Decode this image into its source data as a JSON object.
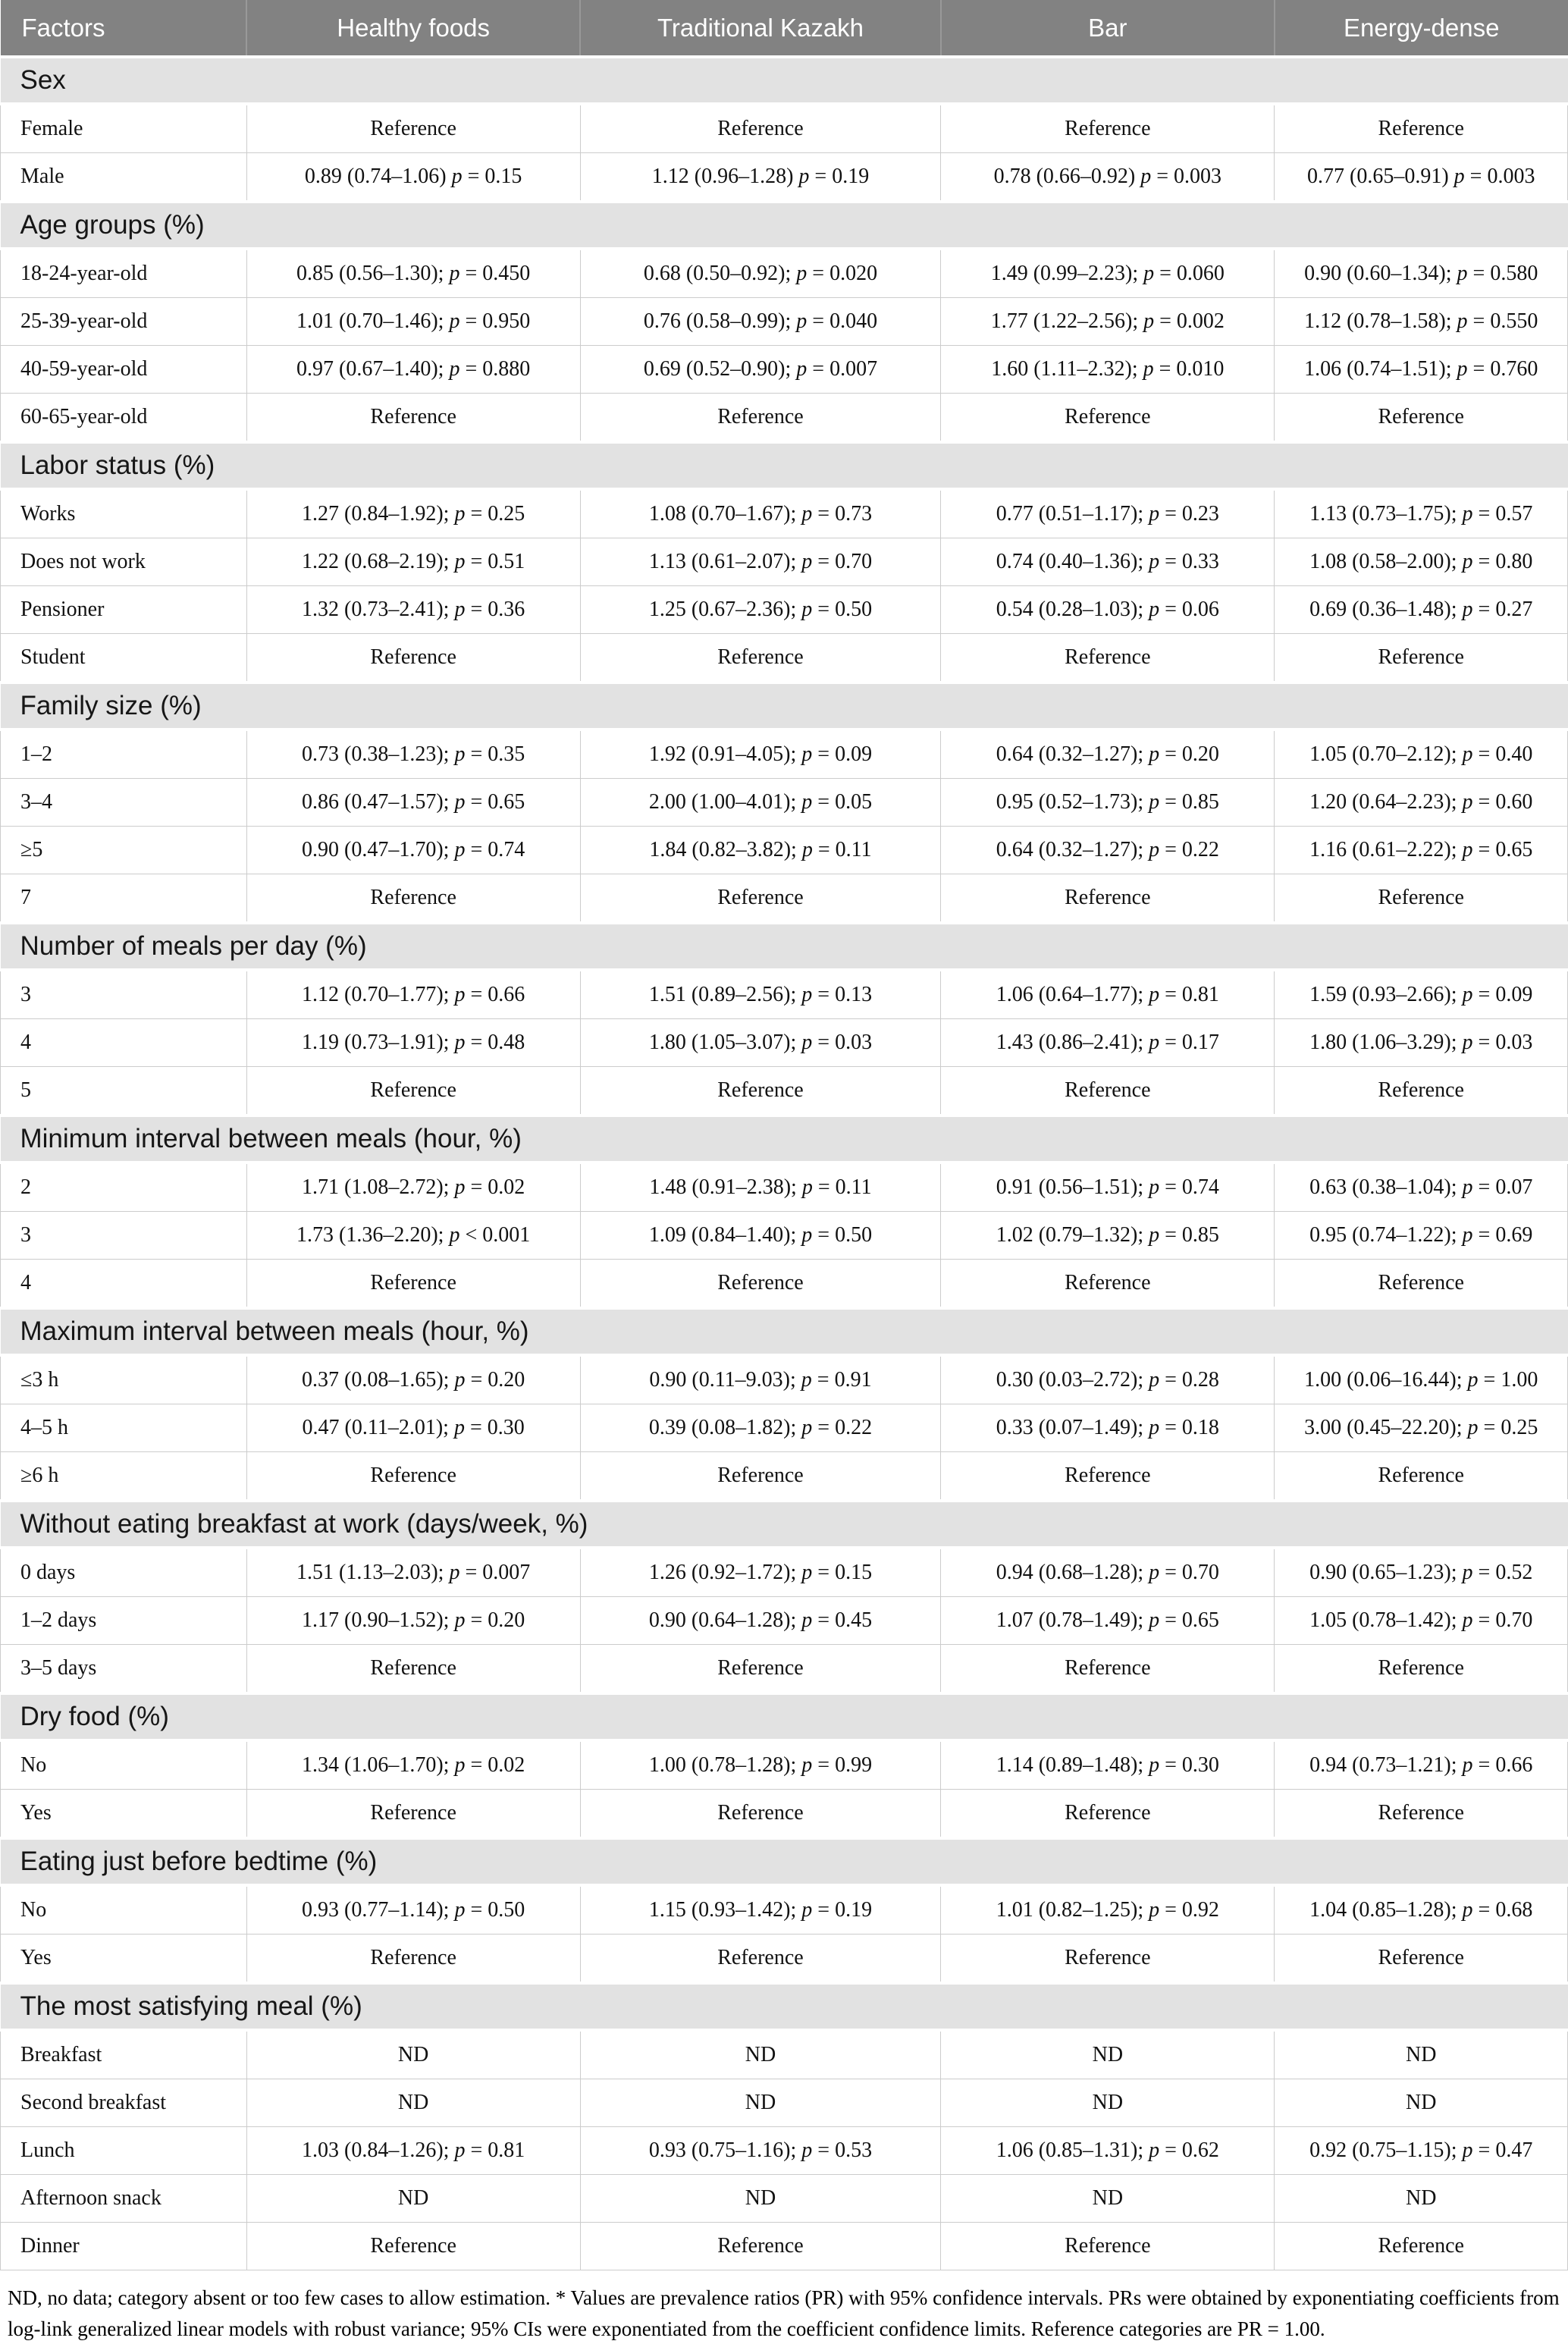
{
  "table": {
    "columns": [
      "Factors",
      "Healthy foods",
      "Traditional Kazakh",
      "Bar",
      "Energy-dense"
    ],
    "sections": [
      {
        "title": "Sex",
        "rows": [
          [
            "Female",
            "Reference",
            "Reference",
            "Reference",
            "Reference"
          ],
          [
            "Male",
            "0.89 (0.74–1.06) p = 0.15",
            "1.12 (0.96–1.28) p = 0.19",
            "0.78 (0.66–0.92) p = 0.003",
            "0.77 (0.65–0.91) p = 0.003"
          ]
        ]
      },
      {
        "title": "Age groups (%)",
        "rows": [
          [
            "18-24-year-old",
            "0.85 (0.56–1.30); p = 0.450",
            "0.68 (0.50–0.92); p = 0.020",
            "1.49 (0.99–2.23); p = 0.060",
            "0.90 (0.60–1.34); p = 0.580"
          ],
          [
            "25-39-year-old",
            "1.01 (0.70–1.46); p = 0.950",
            "0.76 (0.58–0.99); p = 0.040",
            "1.77 (1.22–2.56); p = 0.002",
            "1.12 (0.78–1.58); p = 0.550"
          ],
          [
            "40-59-year-old",
            "0.97 (0.67–1.40); p = 0.880",
            "0.69 (0.52–0.90); p = 0.007",
            "1.60 (1.11–2.32); p = 0.010",
            "1.06 (0.74–1.51); p = 0.760"
          ],
          [
            "60-65-year-old",
            "Reference",
            "Reference",
            "Reference",
            "Reference"
          ]
        ]
      },
      {
        "title": "Labor status (%)",
        "rows": [
          [
            "Works",
            "1.27 (0.84–1.92); p = 0.25",
            "1.08 (0.70–1.67); p = 0.73",
            "0.77 (0.51–1.17); p = 0.23",
            "1.13 (0.73–1.75); p = 0.57"
          ],
          [
            "Does not work",
            "1.22 (0.68–2.19); p = 0.51",
            "1.13 (0.61–2.07); p = 0.70",
            "0.74 (0.40–1.36); p = 0.33",
            "1.08 (0.58–2.00); p = 0.80"
          ],
          [
            "Pensioner",
            "1.32 (0.73–2.41); p = 0.36",
            "1.25 (0.67–2.36); p = 0.50",
            "0.54 (0.28–1.03); p = 0.06",
            "0.69 (0.36–1.48); p = 0.27"
          ],
          [
            "Student",
            "Reference",
            "Reference",
            "Reference",
            "Reference"
          ]
        ]
      },
      {
        "title": "Family size (%)",
        "rows": [
          [
            "1–2",
            "0.73 (0.38–1.23); p = 0.35",
            "1.92 (0.91–4.05); p = 0.09",
            "0.64 (0.32–1.27); p = 0.20",
            "1.05 (0.70–2.12); p = 0.40"
          ],
          [
            "3–4",
            "0.86 (0.47–1.57); p = 0.65",
            "2.00 (1.00–4.01); p = 0.05",
            "0.95 (0.52–1.73); p = 0.85",
            "1.20 (0.64–2.23); p = 0.60"
          ],
          [
            "≥5",
            "0.90 (0.47–1.70); p = 0.74",
            "1.84 (0.82–3.82); p = 0.11",
            "0.64 (0.32–1.27); p = 0.22",
            "1.16 (0.61–2.22); p = 0.65"
          ],
          [
            "7",
            "Reference",
            "Reference",
            "Reference",
            "Reference"
          ]
        ]
      },
      {
        "title": "Number of meals per day (%)",
        "rows": [
          [
            "3",
            "1.12 (0.70–1.77); p = 0.66",
            "1.51 (0.89–2.56); p = 0.13",
            "1.06 (0.64–1.77); p = 0.81",
            "1.59 (0.93–2.66); p = 0.09"
          ],
          [
            "4",
            "1.19 (0.73–1.91); p = 0.48",
            "1.80 (1.05–3.07); p = 0.03",
            "1.43 (0.86–2.41); p = 0.17",
            "1.80 (1.06–3.29); p = 0.03"
          ],
          [
            "5",
            "Reference",
            "Reference",
            "Reference",
            "Reference"
          ]
        ]
      },
      {
        "title": "Minimum interval between meals (hour, %)",
        "rows": [
          [
            "2",
            "1.71 (1.08–2.72); p = 0.02",
            "1.48 (0.91–2.38); p = 0.11",
            "0.91 (0.56–1.51); p = 0.74",
            "0.63 (0.38–1.04); p = 0.07"
          ],
          [
            "3",
            "1.73 (1.36–2.20); p < 0.001",
            "1.09 (0.84–1.40); p = 0.50",
            "1.02 (0.79–1.32); p = 0.85",
            "0.95 (0.74–1.22); p = 0.69"
          ],
          [
            "4",
            "Reference",
            "Reference",
            "Reference",
            "Reference"
          ]
        ]
      },
      {
        "title": "Maximum interval between meals (hour, %)",
        "rows": [
          [
            "≤3 h",
            "0.37 (0.08–1.65); p = 0.20",
            "0.90 (0.11–9.03); p = 0.91",
            "0.30 (0.03–2.72); p = 0.28",
            "1.00 (0.06–16.44); p = 1.00"
          ],
          [
            "4–5 h",
            "0.47 (0.11–2.01); p = 0.30",
            "0.39 (0.08–1.82); p = 0.22",
            "0.33 (0.07–1.49); p = 0.18",
            "3.00 (0.45–22.20); p = 0.25"
          ],
          [
            "≥6 h",
            "Reference",
            "Reference",
            "Reference",
            "Reference"
          ]
        ]
      },
      {
        "title": "Without eating breakfast at work (days/week, %)",
        "rows": [
          [
            "0 days",
            "1.51 (1.13–2.03); p = 0.007",
            "1.26 (0.92–1.72); p = 0.15",
            "0.94 (0.68–1.28); p = 0.70",
            "0.90 (0.65–1.23); p = 0.52"
          ],
          [
            "1–2 days",
            "1.17 (0.90–1.52); p = 0.20",
            "0.90 (0.64–1.28); p = 0.45",
            "1.07 (0.78–1.49); p = 0.65",
            "1.05 (0.78–1.42); p = 0.70"
          ],
          [
            "3–5 days",
            "Reference",
            "Reference",
            "Reference",
            "Reference"
          ]
        ]
      },
      {
        "title": "Dry food (%)",
        "rows": [
          [
            "No",
            "1.34 (1.06–1.70); p = 0.02",
            "1.00 (0.78–1.28); p = 0.99",
            "1.14 (0.89–1.48); p = 0.30",
            "0.94 (0.73–1.21); p = 0.66"
          ],
          [
            "Yes",
            "Reference",
            "Reference",
            "Reference",
            "Reference"
          ]
        ]
      },
      {
        "title": "Eating just before bedtime (%)",
        "rows": [
          [
            "No",
            "0.93 (0.77–1.14); p = 0.50",
            "1.15 (0.93–1.42); p = 0.19",
            "1.01 (0.82–1.25); p = 0.92",
            "1.04 (0.85–1.28); p = 0.68"
          ],
          [
            "Yes",
            "Reference",
            "Reference",
            "Reference",
            "Reference"
          ]
        ]
      },
      {
        "title": "The most satisfying meal (%)",
        "rows": [
          [
            "Breakfast",
            "ND",
            "ND",
            "ND",
            "ND"
          ],
          [
            "Second breakfast",
            "ND",
            "ND",
            "ND",
            "ND"
          ],
          [
            "Lunch",
            "1.03 (0.84–1.26); p = 0.81",
            "0.93 (0.75–1.16); p = 0.53",
            "1.06 (0.85–1.31); p = 0.62",
            "0.92 (0.75–1.15); p = 0.47"
          ],
          [
            "Afternoon snack",
            "ND",
            "ND",
            "ND",
            "ND"
          ],
          [
            "Dinner",
            "Reference",
            "Reference",
            "Reference",
            "Reference"
          ]
        ]
      }
    ],
    "footnote": "ND, no data; category absent or too few cases to allow estimation. * Values are prevalence ratios (PR) with 95% confidence intervals. PRs were obtained by exponentiating coefficients from log-link generalized linear models with robust variance; 95% CIs were exponentiated from the coefficient confidence limits. Reference categories are PR = 1.00."
  },
  "colors": {
    "header_bg": "#828282",
    "header_text": "#ffffff",
    "section_bg": "#e2e2e2",
    "row_border": "#cccccc"
  }
}
